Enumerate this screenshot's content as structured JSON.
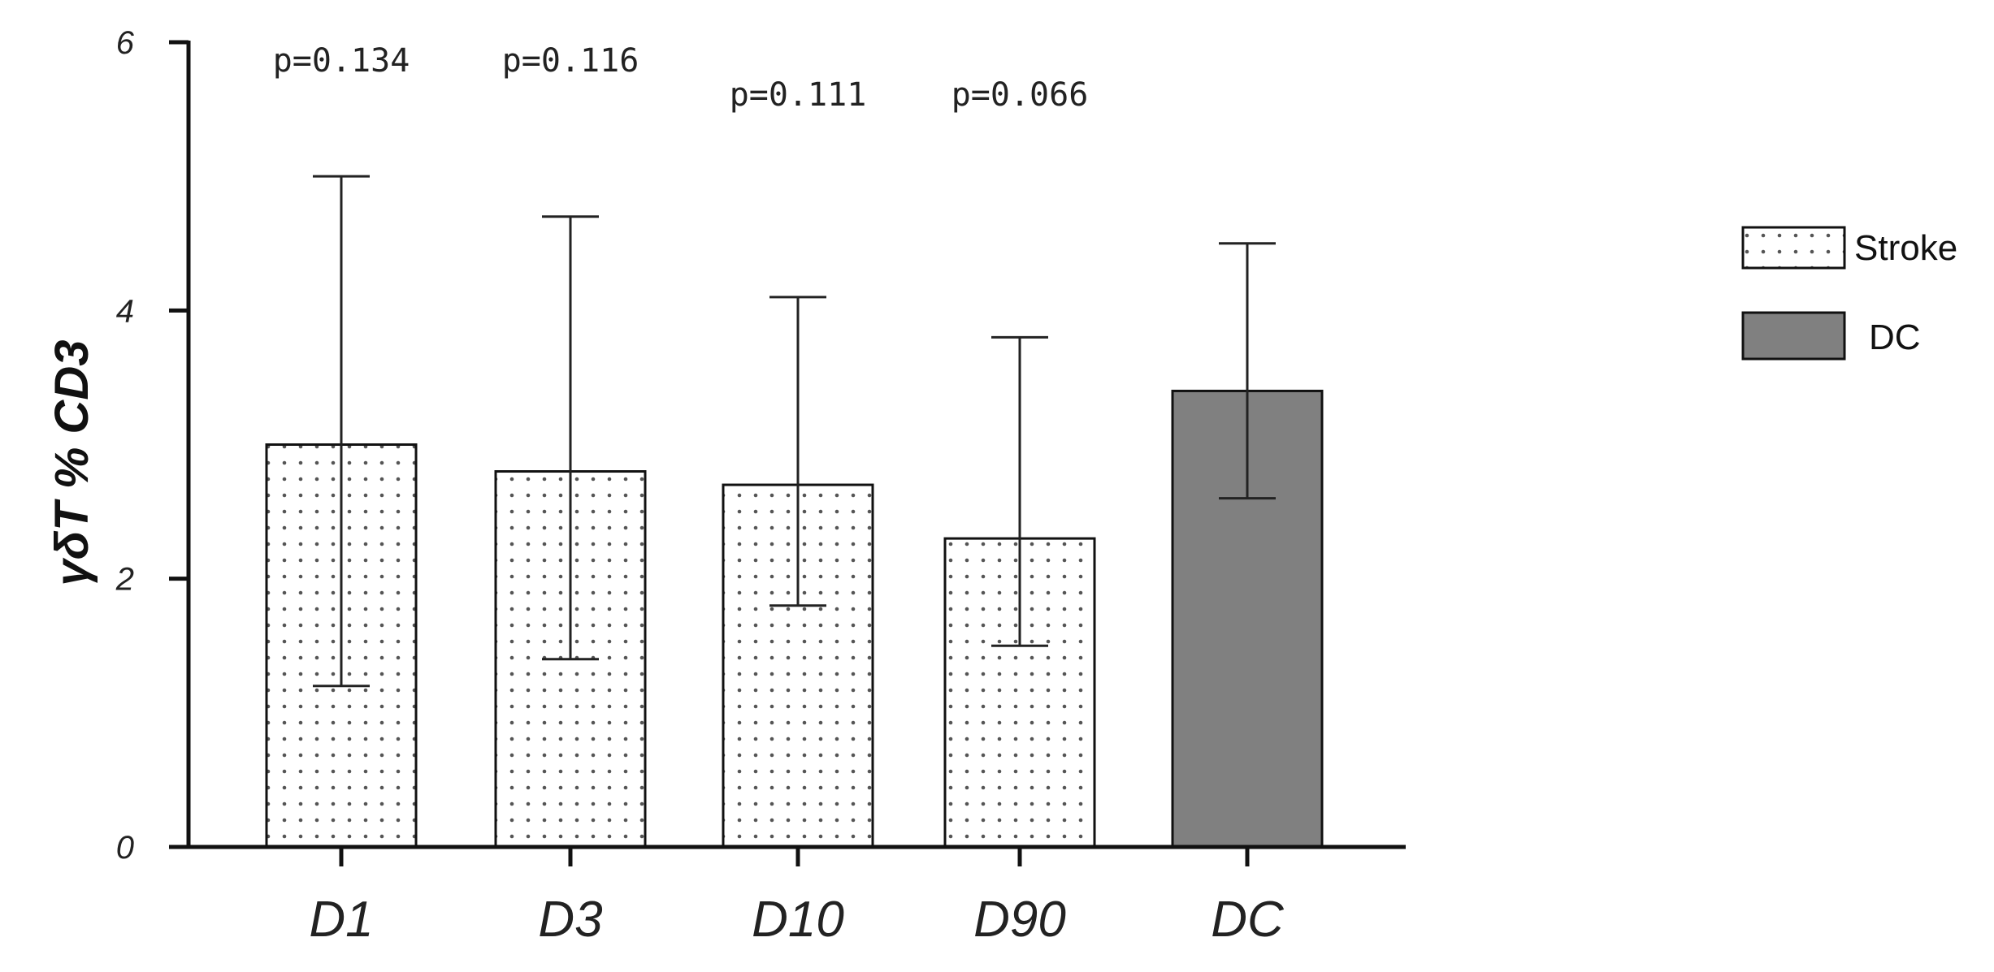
{
  "chart_data": {
    "type": "bar",
    "title": "",
    "xlabel": "",
    "ylabel": "γδT % CD3",
    "ylim": [
      0,
      6
    ],
    "yticks": [
      0,
      2,
      4,
      6
    ],
    "grid": false,
    "legend_position": "right",
    "categories": [
      "D1",
      "D3",
      "D10",
      "D90",
      "DC"
    ],
    "values": [
      3.0,
      2.8,
      2.7,
      2.3,
      3.4
    ],
    "error_high": [
      5.0,
      4.7,
      4.1,
      3.8,
      4.5
    ],
    "error_low": [
      1.2,
      1.4,
      1.8,
      1.5,
      2.6
    ],
    "groups": [
      "Stroke",
      "Stroke",
      "Stroke",
      "Stroke",
      "DC"
    ],
    "annotations": [
      {
        "category": "D1",
        "text": "p=0.134"
      },
      {
        "category": "D3",
        "text": "p=0.116"
      },
      {
        "category": "D10",
        "text": "p=0.111"
      },
      {
        "category": "D90",
        "text": "p=0.066"
      }
    ],
    "legend": [
      {
        "name": "Stroke",
        "style": "dotted",
        "color": "#ffffff"
      },
      {
        "name": "DC",
        "style": "solid",
        "color": "#808080"
      }
    ],
    "colors": {
      "axis": "#111111",
      "dc_fill": "#808080",
      "dot": "#555555",
      "bar_stroke": "#111111"
    }
  }
}
